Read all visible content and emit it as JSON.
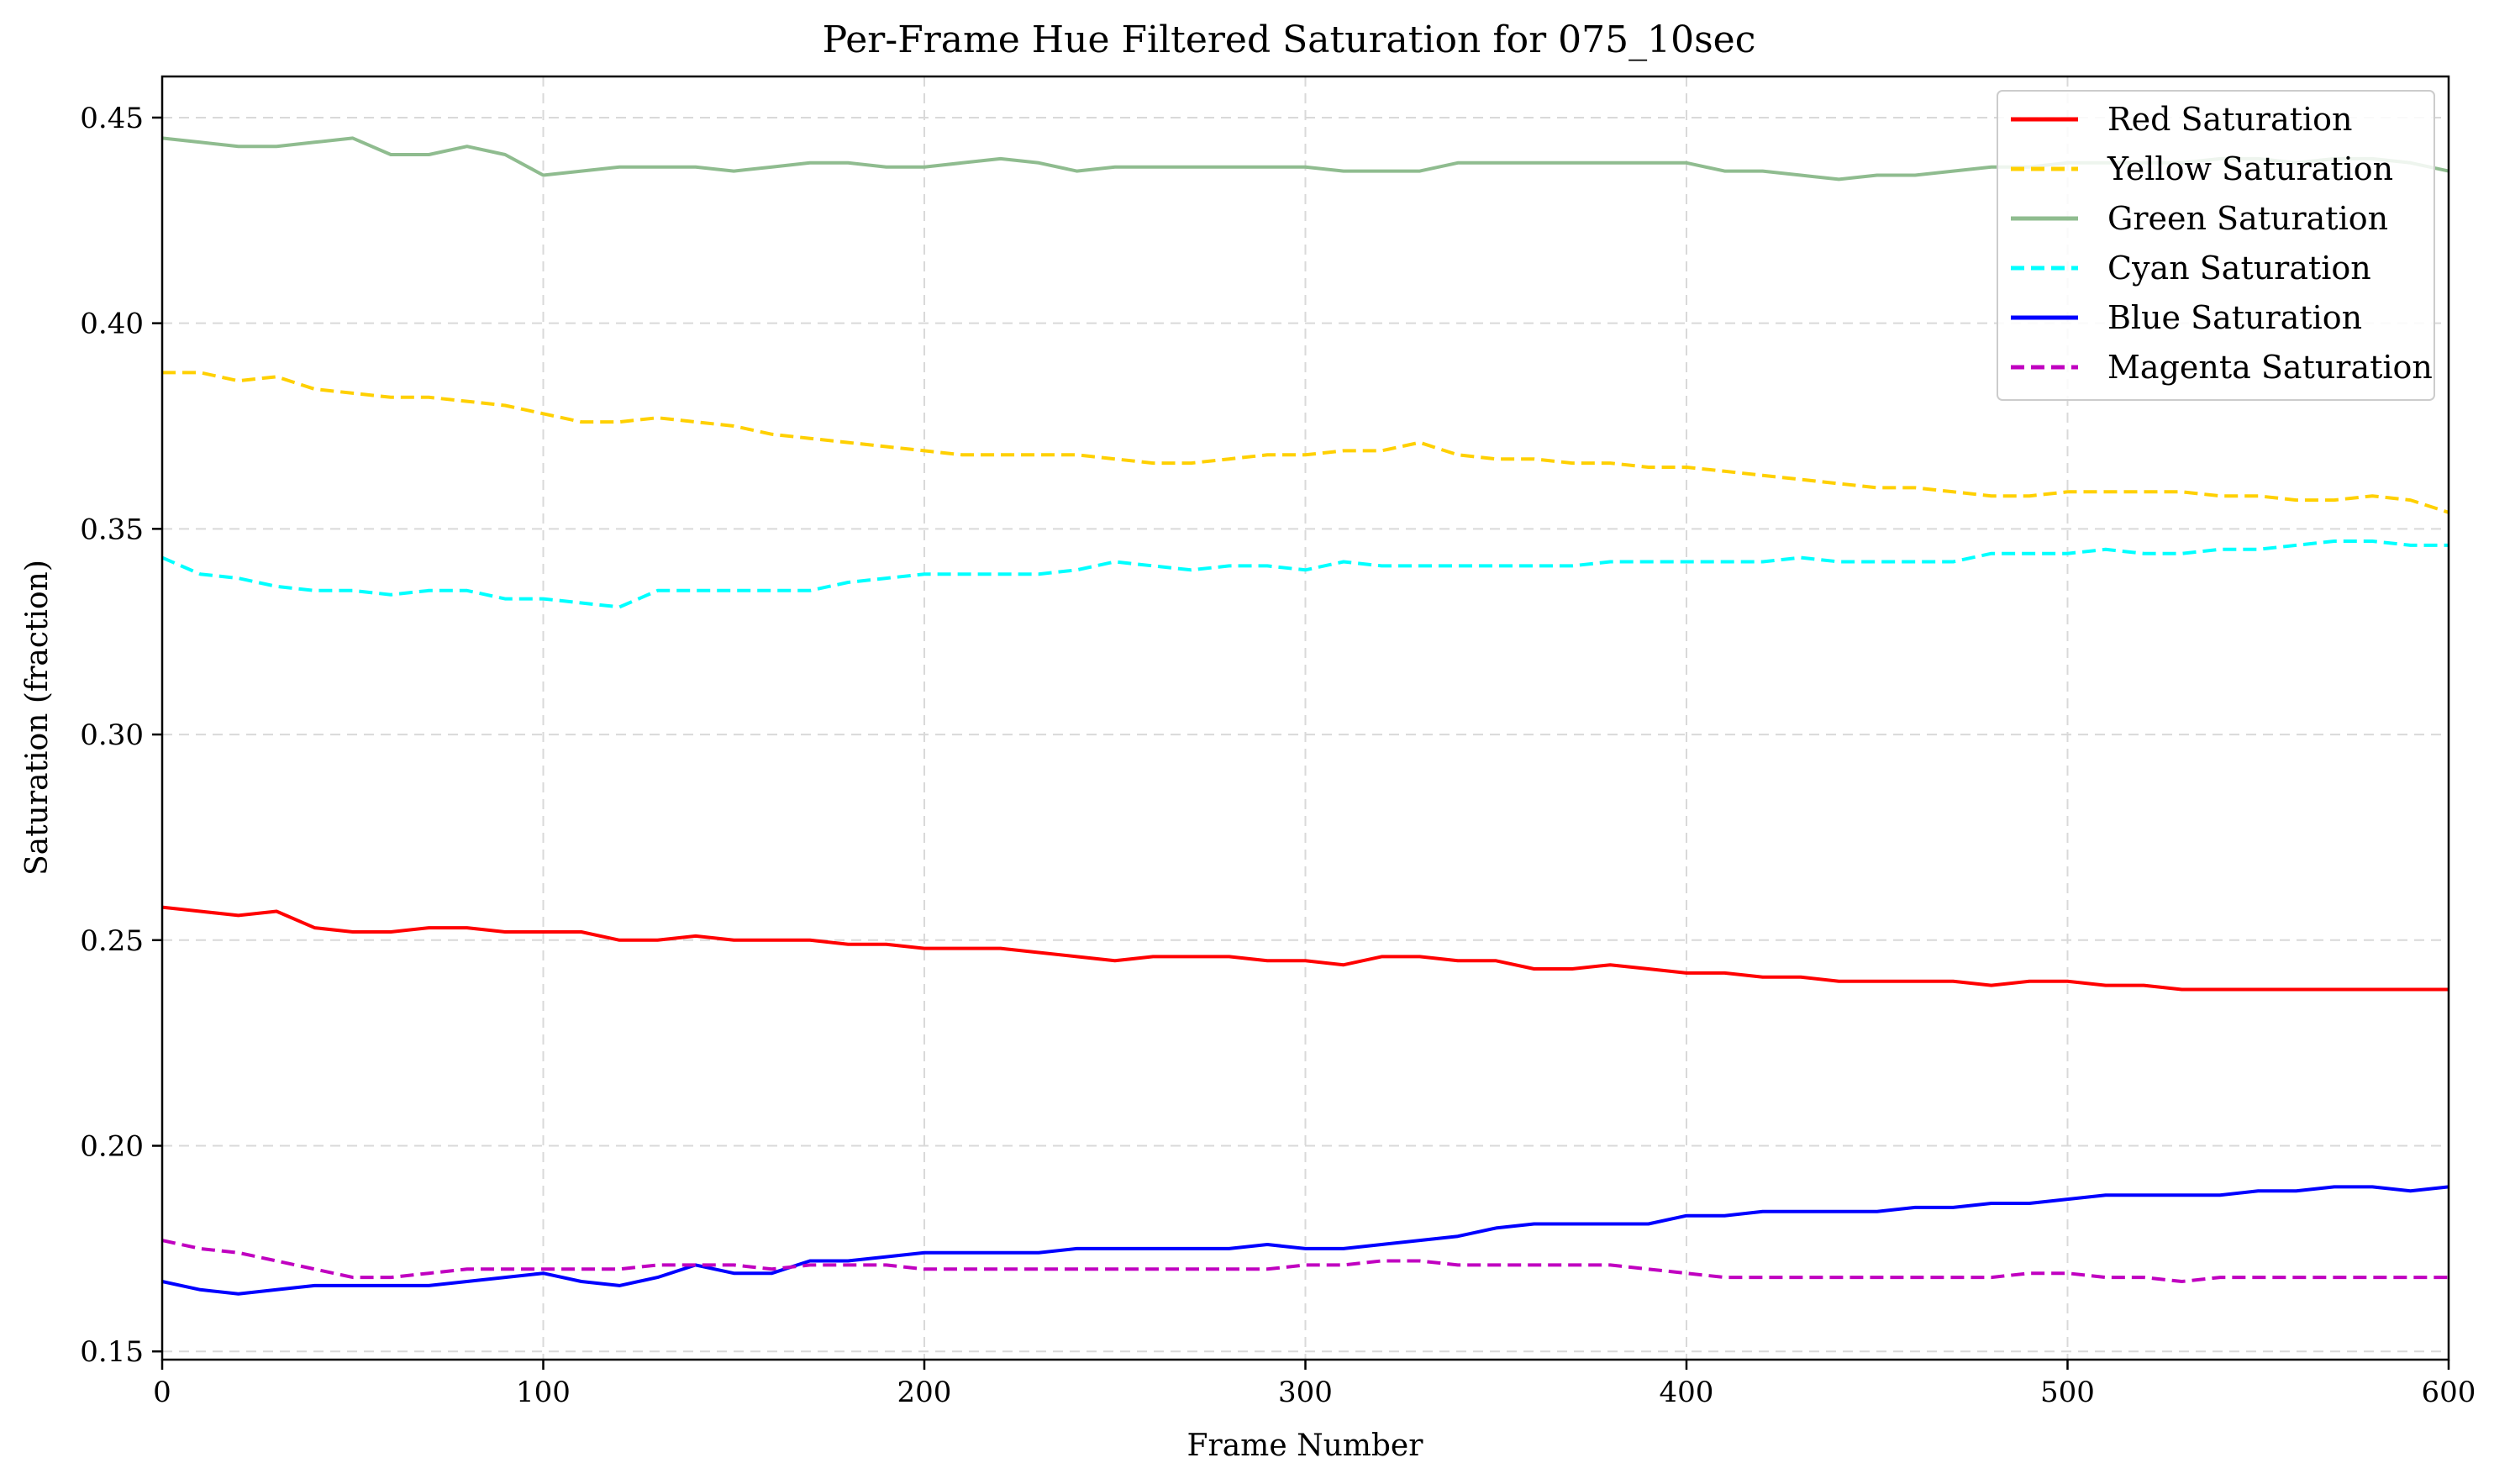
{
  "chart_data": {
    "type": "line",
    "title": "Per-Frame Hue Filtered Saturation for 075_10sec",
    "xlabel": "Frame Number",
    "ylabel": "Saturation (fraction)",
    "xlim": [
      0,
      600
    ],
    "ylim": [
      0.148,
      0.46
    ],
    "x_ticks": [
      0,
      100,
      200,
      300,
      400,
      500,
      600
    ],
    "y_ticks": [
      0.15,
      0.2,
      0.25,
      0.3,
      0.35,
      0.4,
      0.45
    ],
    "x_tick_labels": [
      "0",
      "100",
      "200",
      "300",
      "400",
      "500",
      "600"
    ],
    "y_tick_labels": [
      "0.15",
      "0.20",
      "0.25",
      "0.30",
      "0.35",
      "0.40",
      "0.45"
    ],
    "grid": true,
    "legend_position": "top-right",
    "x": [
      0,
      10,
      20,
      30,
      40,
      50,
      60,
      70,
      80,
      90,
      100,
      110,
      120,
      130,
      140,
      150,
      160,
      170,
      180,
      190,
      200,
      210,
      220,
      230,
      240,
      250,
      260,
      270,
      280,
      290,
      300,
      310,
      320,
      330,
      340,
      350,
      360,
      370,
      380,
      390,
      400,
      410,
      420,
      430,
      440,
      450,
      460,
      470,
      480,
      490,
      500,
      510,
      520,
      530,
      540,
      550,
      560,
      570,
      580,
      590,
      600
    ],
    "series": [
      {
        "name": "Red Saturation",
        "color": "#ff0000",
        "style": "solid",
        "values": [
          0.258,
          0.257,
          0.256,
          0.257,
          0.253,
          0.252,
          0.252,
          0.253,
          0.253,
          0.252,
          0.252,
          0.252,
          0.25,
          0.25,
          0.251,
          0.25,
          0.25,
          0.25,
          0.249,
          0.249,
          0.248,
          0.248,
          0.248,
          0.247,
          0.246,
          0.245,
          0.246,
          0.246,
          0.246,
          0.245,
          0.245,
          0.244,
          0.246,
          0.246,
          0.245,
          0.245,
          0.243,
          0.243,
          0.244,
          0.243,
          0.242,
          0.242,
          0.241,
          0.241,
          0.24,
          0.24,
          0.24,
          0.24,
          0.239,
          0.24,
          0.24,
          0.239,
          0.239,
          0.238,
          0.238,
          0.238,
          0.238,
          0.238,
          0.238,
          0.238,
          0.238
        ]
      },
      {
        "name": "Yellow Saturation",
        "color": "#ffd000",
        "style": "dashed",
        "values": [
          0.388,
          0.388,
          0.386,
          0.387,
          0.384,
          0.383,
          0.382,
          0.382,
          0.381,
          0.38,
          0.378,
          0.376,
          0.376,
          0.377,
          0.376,
          0.375,
          0.373,
          0.372,
          0.371,
          0.37,
          0.369,
          0.368,
          0.368,
          0.368,
          0.368,
          0.367,
          0.366,
          0.366,
          0.367,
          0.368,
          0.368,
          0.369,
          0.369,
          0.371,
          0.368,
          0.367,
          0.367,
          0.366,
          0.366,
          0.365,
          0.365,
          0.364,
          0.363,
          0.362,
          0.361,
          0.36,
          0.36,
          0.359,
          0.358,
          0.358,
          0.359,
          0.359,
          0.359,
          0.359,
          0.358,
          0.358,
          0.357,
          0.357,
          0.358,
          0.357,
          0.354
        ]
      },
      {
        "name": "Green Saturation",
        "color": "#8fbc8f",
        "style": "solid",
        "values": [
          0.445,
          0.444,
          0.443,
          0.443,
          0.444,
          0.445,
          0.441,
          0.441,
          0.443,
          0.441,
          0.436,
          0.437,
          0.438,
          0.438,
          0.438,
          0.437,
          0.438,
          0.439,
          0.439,
          0.438,
          0.438,
          0.439,
          0.44,
          0.439,
          0.437,
          0.438,
          0.438,
          0.438,
          0.438,
          0.438,
          0.438,
          0.437,
          0.437,
          0.437,
          0.439,
          0.439,
          0.439,
          0.439,
          0.439,
          0.439,
          0.439,
          0.437,
          0.437,
          0.436,
          0.435,
          0.436,
          0.436,
          0.437,
          0.438,
          0.438,
          0.439,
          0.439,
          0.439,
          0.439,
          0.44,
          0.44,
          0.439,
          0.44,
          0.44,
          0.439,
          0.437
        ]
      },
      {
        "name": "Cyan Saturation",
        "color": "#00ffff",
        "style": "dashed",
        "values": [
          0.343,
          0.339,
          0.338,
          0.336,
          0.335,
          0.335,
          0.334,
          0.335,
          0.335,
          0.333,
          0.333,
          0.332,
          0.331,
          0.335,
          0.335,
          0.335,
          0.335,
          0.335,
          0.337,
          0.338,
          0.339,
          0.339,
          0.339,
          0.339,
          0.34,
          0.342,
          0.341,
          0.34,
          0.341,
          0.341,
          0.34,
          0.342,
          0.341,
          0.341,
          0.341,
          0.341,
          0.341,
          0.341,
          0.342,
          0.342,
          0.342,
          0.342,
          0.342,
          0.343,
          0.342,
          0.342,
          0.342,
          0.342,
          0.344,
          0.344,
          0.344,
          0.345,
          0.344,
          0.344,
          0.345,
          0.345,
          0.346,
          0.347,
          0.347,
          0.346,
          0.346
        ]
      },
      {
        "name": "Blue Saturation",
        "color": "#0000ff",
        "style": "solid",
        "values": [
          0.167,
          0.165,
          0.164,
          0.165,
          0.166,
          0.166,
          0.166,
          0.166,
          0.167,
          0.168,
          0.169,
          0.167,
          0.166,
          0.168,
          0.171,
          0.169,
          0.169,
          0.172,
          0.172,
          0.173,
          0.174,
          0.174,
          0.174,
          0.174,
          0.175,
          0.175,
          0.175,
          0.175,
          0.175,
          0.176,
          0.175,
          0.175,
          0.176,
          0.177,
          0.178,
          0.18,
          0.181,
          0.181,
          0.181,
          0.181,
          0.183,
          0.183,
          0.184,
          0.184,
          0.184,
          0.184,
          0.185,
          0.185,
          0.186,
          0.186,
          0.187,
          0.188,
          0.188,
          0.188,
          0.188,
          0.189,
          0.189,
          0.19,
          0.19,
          0.189,
          0.19
        ]
      },
      {
        "name": "Magenta Saturation",
        "color": "#c000c0",
        "style": "dashed",
        "values": [
          0.177,
          0.175,
          0.174,
          0.172,
          0.17,
          0.168,
          0.168,
          0.169,
          0.17,
          0.17,
          0.17,
          0.17,
          0.17,
          0.171,
          0.171,
          0.171,
          0.17,
          0.171,
          0.171,
          0.171,
          0.17,
          0.17,
          0.17,
          0.17,
          0.17,
          0.17,
          0.17,
          0.17,
          0.17,
          0.17,
          0.171,
          0.171,
          0.172,
          0.172,
          0.171,
          0.171,
          0.171,
          0.171,
          0.171,
          0.17,
          0.169,
          0.168,
          0.168,
          0.168,
          0.168,
          0.168,
          0.168,
          0.168,
          0.168,
          0.169,
          0.169,
          0.168,
          0.168,
          0.167,
          0.168,
          0.168,
          0.168,
          0.168,
          0.168,
          0.168,
          0.168
        ]
      }
    ]
  }
}
